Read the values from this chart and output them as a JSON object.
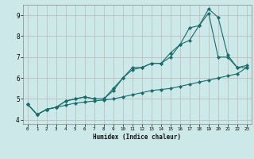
{
  "xlabel": "Humidex (Indice chaleur)",
  "bg_color": "#cce8e8",
  "grid_color": "#b8b8b8",
  "line_color": "#1a6b6b",
  "xlim": [
    -0.5,
    23.5
  ],
  "ylim": [
    3.8,
    9.5
  ],
  "xticks": [
    0,
    1,
    2,
    3,
    4,
    5,
    6,
    7,
    8,
    9,
    10,
    11,
    12,
    13,
    14,
    15,
    16,
    17,
    18,
    19,
    20,
    21,
    22,
    23
  ],
  "yticks": [
    4,
    5,
    6,
    7,
    8,
    9
  ],
  "series1_x": [
    0,
    1,
    2,
    3,
    4,
    5,
    6,
    7,
    8,
    9,
    10,
    11,
    12,
    13,
    14,
    15,
    16,
    17,
    18,
    19,
    20,
    21,
    22,
    23
  ],
  "series1_y": [
    4.75,
    4.25,
    4.5,
    4.6,
    4.7,
    4.8,
    4.85,
    4.9,
    4.95,
    5.0,
    5.1,
    5.2,
    5.3,
    5.4,
    5.45,
    5.5,
    5.6,
    5.7,
    5.8,
    5.9,
    6.0,
    6.1,
    6.2,
    6.5
  ],
  "series2_x": [
    0,
    1,
    2,
    3,
    4,
    5,
    6,
    7,
    8,
    9,
    10,
    11,
    12,
    13,
    14,
    15,
    16,
    17,
    18,
    19,
    20,
    21,
    22,
    23
  ],
  "series2_y": [
    4.75,
    4.25,
    4.5,
    4.6,
    4.9,
    5.0,
    5.1,
    5.0,
    5.0,
    5.4,
    6.0,
    6.4,
    6.5,
    6.7,
    6.7,
    7.0,
    7.6,
    7.8,
    8.5,
    9.1,
    7.0,
    7.0,
    6.5,
    6.5
  ],
  "series3_x": [
    0,
    1,
    2,
    3,
    4,
    5,
    6,
    7,
    8,
    9,
    10,
    11,
    12,
    13,
    14,
    15,
    16,
    17,
    18,
    19,
    20,
    21,
    22,
    23
  ],
  "series3_y": [
    4.75,
    4.25,
    4.5,
    4.6,
    4.9,
    5.0,
    5.1,
    5.0,
    5.0,
    5.5,
    6.0,
    6.5,
    6.5,
    6.7,
    6.7,
    7.2,
    7.6,
    8.4,
    8.5,
    9.3,
    8.9,
    7.1,
    6.5,
    6.6
  ]
}
